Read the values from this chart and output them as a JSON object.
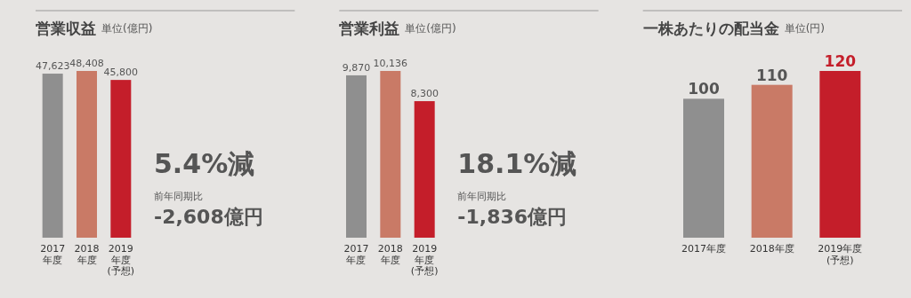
{
  "chart_data": [
    {
      "type": "bar",
      "title": "営業収益",
      "subtitle": "単位(億円)",
      "categories": [
        "2017\n年度",
        "2018\n年度",
        "2019\n年度\n(予想)"
      ],
      "values": [
        47623,
        48408,
        45800
      ],
      "value_labels": [
        "47,623",
        "48,408",
        "45,800"
      ],
      "colors": [
        "#8f8f8f",
        "#c97a66",
        "#c41e2a"
      ],
      "annotations": [
        "5.4%減",
        "前年同期比",
        "-2,608億円"
      ]
    },
    {
      "type": "bar",
      "title": "営業利益",
      "subtitle": "単位(億円)",
      "categories": [
        "2017\n年度",
        "2018\n年度",
        "2019\n年度\n(予想)"
      ],
      "values": [
        9870,
        10136,
        8300
      ],
      "value_labels": [
        "9,870",
        "10,136",
        "8,300"
      ],
      "colors": [
        "#8f8f8f",
        "#c97a66",
        "#c41e2a"
      ],
      "annotations": [
        "18.1%減",
        "前年同期比",
        "-1,836億円"
      ]
    },
    {
      "type": "bar",
      "title": "一株あたりの配当金",
      "subtitle": "単位(円)",
      "categories": [
        "2017年度",
        "2018年度",
        "2019年度\n(予想)"
      ],
      "values": [
        100,
        110,
        120
      ],
      "colors": [
        "#8f8f8f",
        "#c97a66",
        "#c41e2a"
      ],
      "data_labels": true
    }
  ]
}
